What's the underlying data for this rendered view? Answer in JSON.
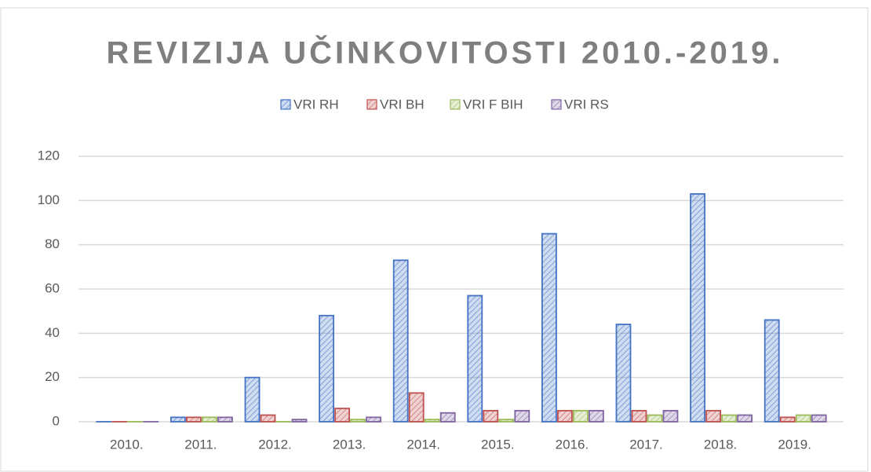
{
  "chart_data": {
    "type": "bar",
    "title": "REVIZIJA UČINKOVITOSTI 2010.-2019.",
    "categories": [
      "2010.",
      "2011.",
      "2012.",
      "2013.",
      "2014.",
      "2015.",
      "2016.",
      "2017.",
      "2018.",
      "2019."
    ],
    "series": [
      {
        "name": "VRI RH",
        "color": "#4472c4",
        "values": [
          0,
          2,
          20,
          48,
          73,
          57,
          85,
          44,
          103,
          46
        ]
      },
      {
        "name": "VRI BH",
        "color": "#c0504d",
        "values": [
          0,
          2,
          3,
          6,
          13,
          5,
          5,
          5,
          5,
          2
        ]
      },
      {
        "name": "VRI F BIH",
        "color": "#9bbb59",
        "values": [
          0,
          2,
          0,
          1,
          1,
          1,
          5,
          3,
          3,
          3
        ]
      },
      {
        "name": "VRI RS",
        "color": "#8064a2",
        "values": [
          0,
          2,
          1,
          2,
          4,
          5,
          5,
          5,
          3,
          3
        ]
      }
    ],
    "ylim": [
      0,
      120
    ],
    "yticks": [
      0,
      20,
      40,
      60,
      80,
      100,
      120
    ],
    "grid": true,
    "legend": "top"
  }
}
